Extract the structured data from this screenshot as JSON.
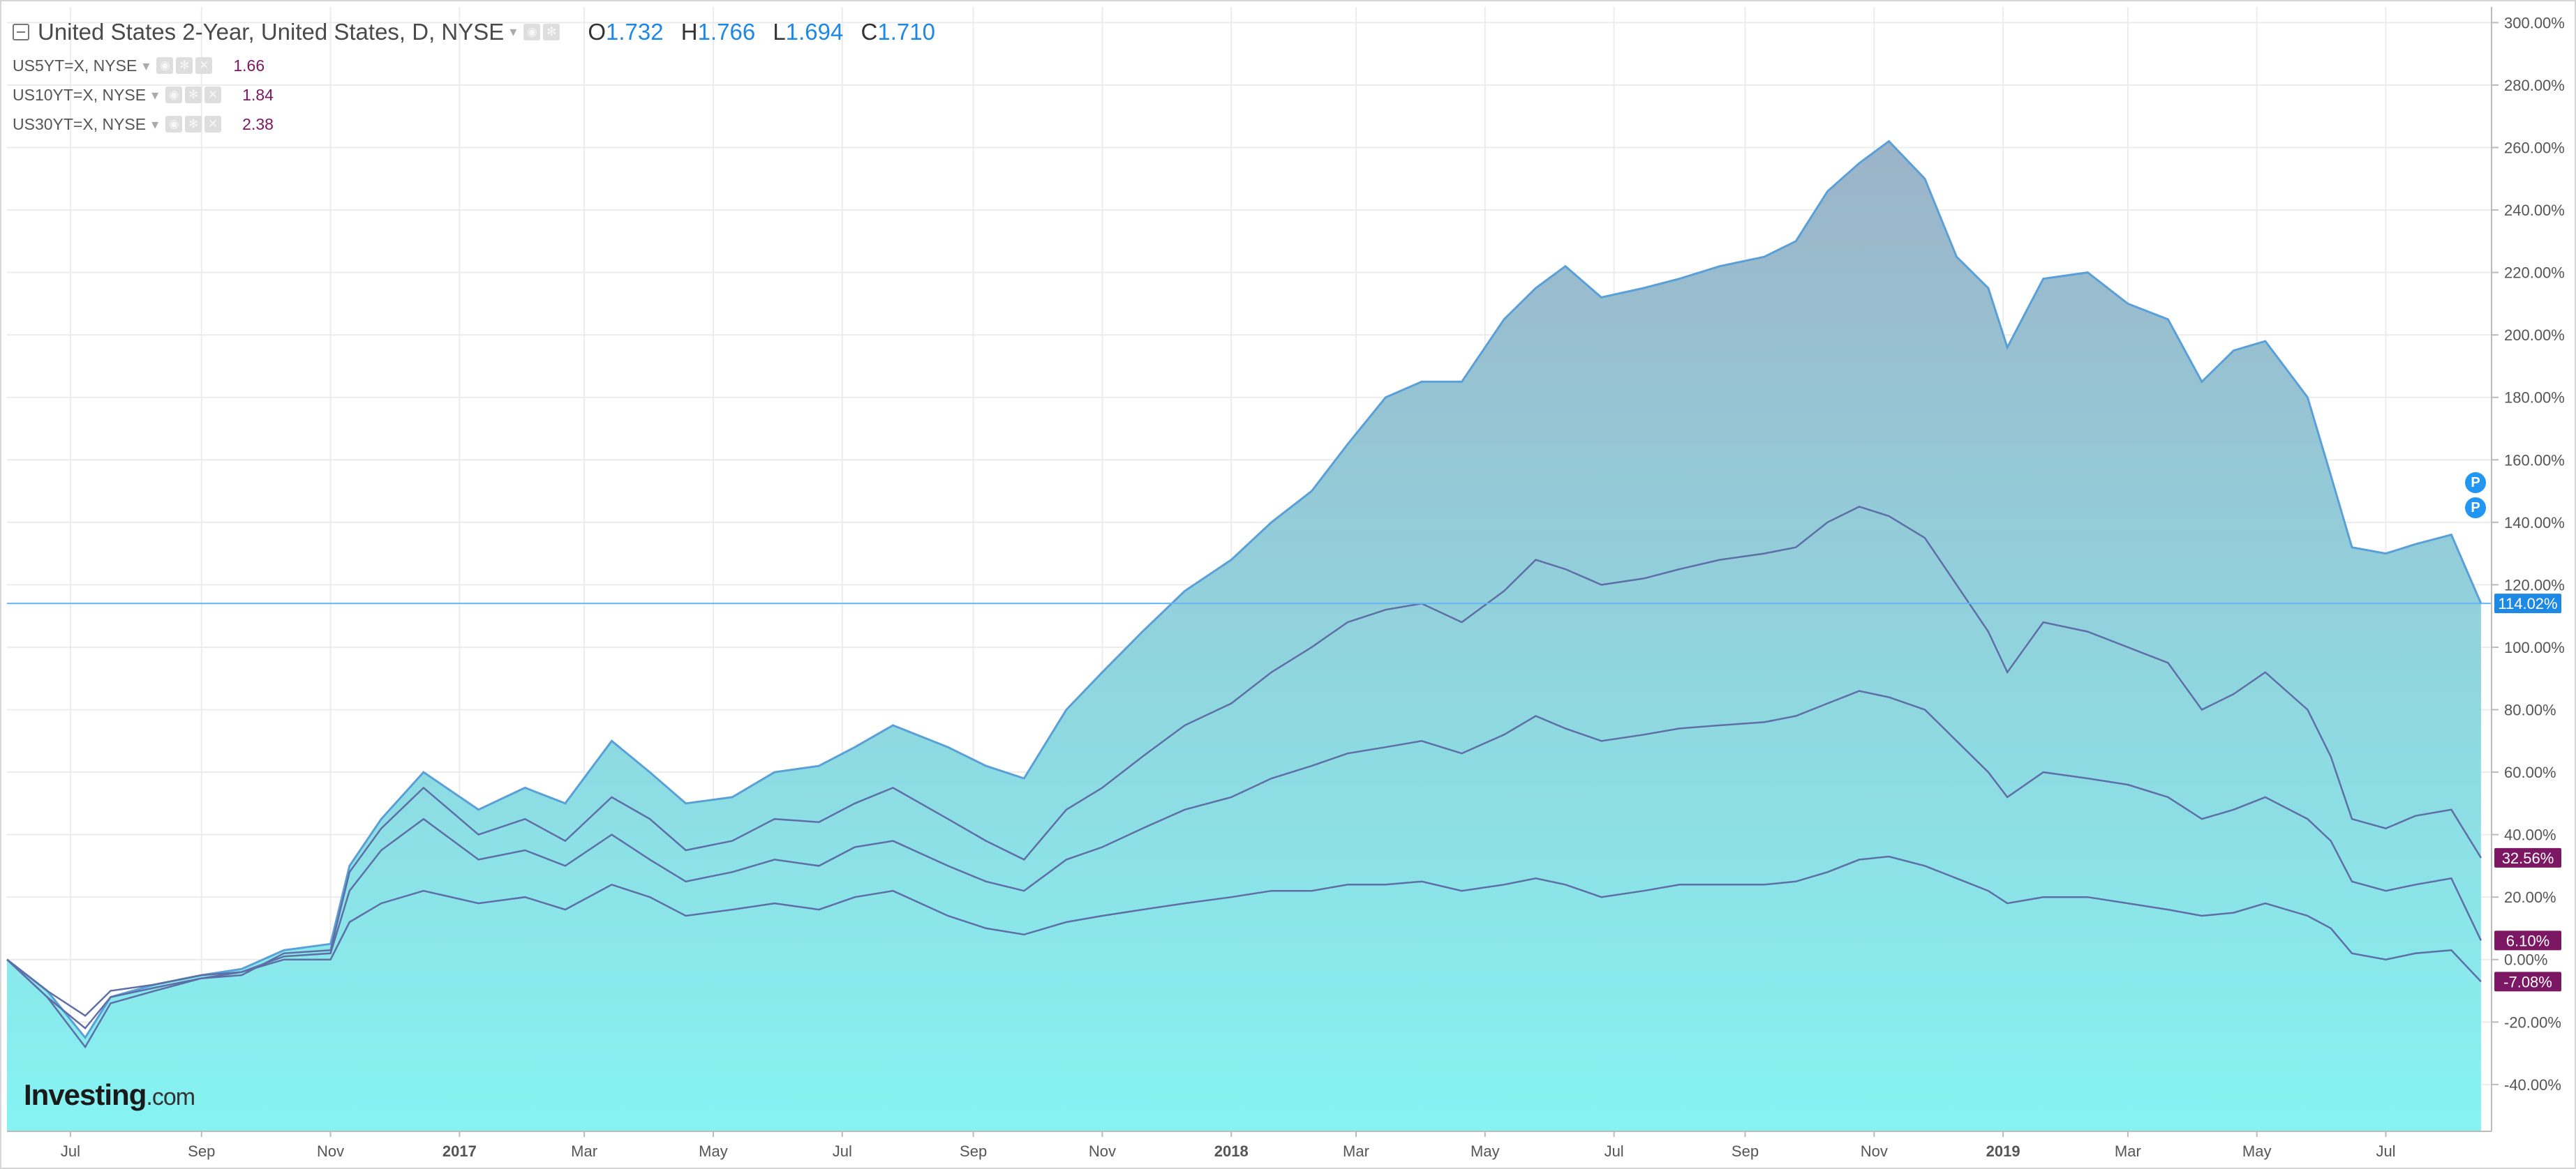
{
  "header": {
    "title": "United States 2-Year, United States, D, NYSE",
    "ohlc": [
      {
        "k": "O",
        "v": "1.732"
      },
      {
        "k": "H",
        "v": "1.766"
      },
      {
        "k": "L",
        "v": "1.694"
      },
      {
        "k": "C",
        "v": "1.710"
      }
    ]
  },
  "legend": [
    {
      "symbol": "US5YT=X, NYSE",
      "value": "1.66"
    },
    {
      "symbol": "US10YT=X, NYSE",
      "value": "1.84"
    },
    {
      "symbol": "US30YT=X, NYSE",
      "value": "2.38"
    }
  ],
  "logo": {
    "brand": "Investing",
    "suffix": ".com"
  },
  "event_marker_label": "P",
  "colors": {
    "area_top": "#9cb3c8",
    "area_bottom": "#86f3f2",
    "line_main": "#5aa0d8",
    "line_series": "#5e6fa8",
    "line_us30": "#a63a9a",
    "badge_main": "#1e88e5",
    "badge_series": "#7b1763",
    "grid": "#ececec"
  },
  "chart_data": {
    "type": "area",
    "y_unit": "%",
    "ylim": [
      -55,
      305
    ],
    "y_ticks": [
      "300.00%",
      "280.00%",
      "260.00%",
      "240.00%",
      "220.00%",
      "200.00%",
      "180.00%",
      "160.00%",
      "140.00%",
      "120.00%",
      "100.00%",
      "80.00%",
      "60.00%",
      "40.00%",
      "20.00%",
      "0.00%",
      "-20.00%",
      "-40.00%"
    ],
    "y_tick_values": [
      300,
      280,
      260,
      240,
      220,
      200,
      180,
      160,
      140,
      120,
      100,
      80,
      60,
      40,
      20,
      0,
      -20,
      -40
    ],
    "x_ticks": [
      {
        "label": "Jul",
        "date": "2016-07-01",
        "bold": false
      },
      {
        "label": "Sep",
        "date": "2016-09-01",
        "bold": false
      },
      {
        "label": "Nov",
        "date": "2016-11-01",
        "bold": false
      },
      {
        "label": "2017",
        "date": "2017-01-01",
        "bold": true
      },
      {
        "label": "Mar",
        "date": "2017-03-01",
        "bold": false
      },
      {
        "label": "May",
        "date": "2017-05-01",
        "bold": false
      },
      {
        "label": "Jul",
        "date": "2017-07-01",
        "bold": false
      },
      {
        "label": "Sep",
        "date": "2017-09-01",
        "bold": false
      },
      {
        "label": "Nov",
        "date": "2017-11-01",
        "bold": false
      },
      {
        "label": "2018",
        "date": "2018-01-01",
        "bold": true
      },
      {
        "label": "Mar",
        "date": "2018-03-01",
        "bold": false
      },
      {
        "label": "May",
        "date": "2018-05-01",
        "bold": false
      },
      {
        "label": "Jul",
        "date": "2018-07-01",
        "bold": false
      },
      {
        "label": "Sep",
        "date": "2018-09-01",
        "bold": false
      },
      {
        "label": "Nov",
        "date": "2018-11-01",
        "bold": false
      },
      {
        "label": "2019",
        "date": "2019-01-01",
        "bold": true
      },
      {
        "label": "Mar",
        "date": "2019-03-01",
        "bold": false
      },
      {
        "label": "May",
        "date": "2019-05-01",
        "bold": false
      },
      {
        "label": "Jul",
        "date": "2019-07-01",
        "bold": false
      }
    ],
    "x_range": [
      "2016-06-01",
      "2019-08-20"
    ],
    "grid": true,
    "series": [
      {
        "name": "United States 2-Year",
        "style": "area",
        "last_label": "114.02%",
        "x": [
          "2016-06-01",
          "2016-06-20",
          "2016-07-08",
          "2016-07-20",
          "2016-08-10",
          "2016-09-01",
          "2016-09-20",
          "2016-10-10",
          "2016-11-01",
          "2016-11-10",
          "2016-11-25",
          "2016-12-15",
          "2017-01-10",
          "2017-02-01",
          "2017-02-20",
          "2017-03-14",
          "2017-04-01",
          "2017-04-18",
          "2017-05-10",
          "2017-05-30",
          "2017-06-20",
          "2017-07-07",
          "2017-07-25",
          "2017-08-20",
          "2017-09-07",
          "2017-09-25",
          "2017-10-15",
          "2017-11-01",
          "2017-11-20",
          "2017-12-10",
          "2018-01-01",
          "2018-01-20",
          "2018-02-08",
          "2018-02-25",
          "2018-03-15",
          "2018-04-01",
          "2018-04-20",
          "2018-05-10",
          "2018-05-25",
          "2018-06-08",
          "2018-06-25",
          "2018-07-15",
          "2018-08-01",
          "2018-08-20",
          "2018-09-10",
          "2018-09-25",
          "2018-10-10",
          "2018-10-25",
          "2018-11-08",
          "2018-11-25",
          "2018-12-10",
          "2018-12-25",
          "2019-01-03",
          "2019-01-20",
          "2019-02-10",
          "2019-03-01",
          "2019-03-20",
          "2019-04-05",
          "2019-04-20",
          "2019-05-05",
          "2019-05-25",
          "2019-06-05",
          "2019-06-15",
          "2019-07-01",
          "2019-07-15",
          "2019-08-01",
          "2019-08-15"
        ],
        "y": [
          0,
          -10,
          -25,
          -12,
          -8,
          -5,
          -3,
          3,
          5,
          30,
          45,
          60,
          48,
          55,
          50,
          70,
          60,
          50,
          52,
          60,
          62,
          68,
          75,
          68,
          62,
          58,
          80,
          92,
          105,
          118,
          128,
          140,
          150,
          165,
          180,
          185,
          185,
          205,
          215,
          222,
          212,
          215,
          218,
          222,
          225,
          230,
          246,
          255,
          262,
          250,
          225,
          215,
          196,
          218,
          220,
          210,
          205,
          185,
          195,
          198,
          180,
          155,
          132,
          130,
          133,
          136,
          114.02
        ]
      },
      {
        "name": "US5YT=X",
        "style": "line",
        "last_label": "32.56%",
        "x": [
          "2016-06-01",
          "2016-06-20",
          "2016-07-08",
          "2016-07-20",
          "2016-08-10",
          "2016-09-01",
          "2016-09-20",
          "2016-10-10",
          "2016-11-01",
          "2016-11-10",
          "2016-11-25",
          "2016-12-15",
          "2017-01-10",
          "2017-02-01",
          "2017-02-20",
          "2017-03-14",
          "2017-04-01",
          "2017-04-18",
          "2017-05-10",
          "2017-05-30",
          "2017-06-20",
          "2017-07-07",
          "2017-07-25",
          "2017-08-20",
          "2017-09-07",
          "2017-09-25",
          "2017-10-15",
          "2017-11-01",
          "2017-11-20",
          "2017-12-10",
          "2018-01-01",
          "2018-01-20",
          "2018-02-08",
          "2018-02-25",
          "2018-03-15",
          "2018-04-01",
          "2018-04-20",
          "2018-05-10",
          "2018-05-25",
          "2018-06-08",
          "2018-06-25",
          "2018-07-15",
          "2018-08-01",
          "2018-08-20",
          "2018-09-10",
          "2018-09-25",
          "2018-10-10",
          "2018-10-25",
          "2018-11-08",
          "2018-11-25",
          "2018-12-10",
          "2018-12-25",
          "2019-01-03",
          "2019-01-20",
          "2019-02-10",
          "2019-03-01",
          "2019-03-20",
          "2019-04-05",
          "2019-04-20",
          "2019-05-05",
          "2019-05-25",
          "2019-06-05",
          "2019-06-15",
          "2019-07-01",
          "2019-07-15",
          "2019-08-01",
          "2019-08-15"
        ],
        "y": [
          0,
          -12,
          -28,
          -14,
          -10,
          -6,
          -5,
          2,
          3,
          28,
          42,
          55,
          40,
          45,
          38,
          52,
          45,
          35,
          38,
          45,
          44,
          50,
          55,
          45,
          38,
          32,
          48,
          55,
          65,
          75,
          82,
          92,
          100,
          108,
          112,
          114,
          108,
          118,
          128,
          125,
          120,
          122,
          125,
          128,
          130,
          132,
          140,
          145,
          142,
          135,
          120,
          105,
          92,
          108,
          105,
          100,
          95,
          80,
          85,
          92,
          80,
          65,
          45,
          42,
          46,
          48,
          32.56
        ]
      },
      {
        "name": "US10YT=X",
        "style": "line",
        "last_label": "6.10%",
        "x": [
          "2016-06-01",
          "2016-06-20",
          "2016-07-08",
          "2016-07-20",
          "2016-08-10",
          "2016-09-01",
          "2016-09-20",
          "2016-10-10",
          "2016-11-01",
          "2016-11-10",
          "2016-11-25",
          "2016-12-15",
          "2017-01-10",
          "2017-02-01",
          "2017-02-20",
          "2017-03-14",
          "2017-04-01",
          "2017-04-18",
          "2017-05-10",
          "2017-05-30",
          "2017-06-20",
          "2017-07-07",
          "2017-07-25",
          "2017-08-20",
          "2017-09-07",
          "2017-09-25",
          "2017-10-15",
          "2017-11-01",
          "2017-11-20",
          "2017-12-10",
          "2018-01-01",
          "2018-01-20",
          "2018-02-08",
          "2018-02-25",
          "2018-03-15",
          "2018-04-01",
          "2018-04-20",
          "2018-05-10",
          "2018-05-25",
          "2018-06-08",
          "2018-06-25",
          "2018-07-15",
          "2018-08-01",
          "2018-08-20",
          "2018-09-10",
          "2018-09-25",
          "2018-10-10",
          "2018-10-25",
          "2018-11-08",
          "2018-11-25",
          "2018-12-10",
          "2018-12-25",
          "2019-01-03",
          "2019-01-20",
          "2019-02-10",
          "2019-03-01",
          "2019-03-20",
          "2019-04-05",
          "2019-04-20",
          "2019-05-05",
          "2019-05-25",
          "2019-06-05",
          "2019-06-15",
          "2019-07-01",
          "2019-07-15",
          "2019-08-01",
          "2019-08-15"
        ],
        "y": [
          0,
          -12,
          -22,
          -12,
          -9,
          -6,
          -4,
          1,
          2,
          22,
          35,
          45,
          32,
          35,
          30,
          40,
          32,
          25,
          28,
          32,
          30,
          36,
          38,
          30,
          25,
          22,
          32,
          36,
          42,
          48,
          52,
          58,
          62,
          66,
          68,
          70,
          66,
          72,
          78,
          74,
          70,
          72,
          74,
          75,
          76,
          78,
          82,
          86,
          84,
          80,
          70,
          60,
          52,
          60,
          58,
          56,
          52,
          45,
          48,
          52,
          45,
          38,
          25,
          22,
          24,
          26,
          6.1
        ]
      },
      {
        "name": "US30YT=X",
        "style": "line",
        "last_label": "-7.08%",
        "x": [
          "2016-06-01",
          "2016-06-20",
          "2016-07-08",
          "2016-07-20",
          "2016-08-10",
          "2016-09-01",
          "2016-09-20",
          "2016-10-10",
          "2016-11-01",
          "2016-11-10",
          "2016-11-25",
          "2016-12-15",
          "2017-01-10",
          "2017-02-01",
          "2017-02-20",
          "2017-03-14",
          "2017-04-01",
          "2017-04-18",
          "2017-05-10",
          "2017-05-30",
          "2017-06-20",
          "2017-07-07",
          "2017-07-25",
          "2017-08-20",
          "2017-09-07",
          "2017-09-25",
          "2017-10-15",
          "2017-11-01",
          "2017-11-20",
          "2017-12-10",
          "2018-01-01",
          "2018-01-20",
          "2018-02-08",
          "2018-02-25",
          "2018-03-15",
          "2018-04-01",
          "2018-04-20",
          "2018-05-10",
          "2018-05-25",
          "2018-06-08",
          "2018-06-25",
          "2018-07-15",
          "2018-08-01",
          "2018-08-20",
          "2018-09-10",
          "2018-09-25",
          "2018-10-10",
          "2018-10-25",
          "2018-11-08",
          "2018-11-25",
          "2018-12-10",
          "2018-12-25",
          "2019-01-03",
          "2019-01-20",
          "2019-02-10",
          "2019-03-01",
          "2019-03-20",
          "2019-04-05",
          "2019-04-20",
          "2019-05-05",
          "2019-05-25",
          "2019-06-05",
          "2019-06-15",
          "2019-07-01",
          "2019-07-15",
          "2019-08-01",
          "2019-08-15"
        ],
        "y": [
          0,
          -10,
          -18,
          -10,
          -8,
          -5,
          -4,
          0,
          0,
          12,
          18,
          22,
          18,
          20,
          16,
          24,
          20,
          14,
          16,
          18,
          16,
          20,
          22,
          14,
          10,
          8,
          12,
          14,
          16,
          18,
          20,
          22,
          22,
          24,
          24,
          25,
          22,
          24,
          26,
          24,
          20,
          22,
          24,
          24,
          24,
          25,
          28,
          32,
          33,
          30,
          26,
          22,
          18,
          20,
          20,
          18,
          16,
          14,
          15,
          18,
          14,
          10,
          2,
          0,
          2,
          3,
          -7.08
        ]
      }
    ],
    "current_line_value": 114.02
  }
}
